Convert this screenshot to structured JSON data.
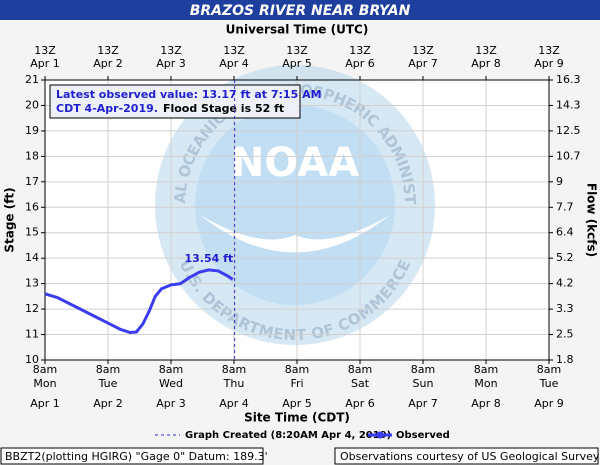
{
  "chart_data": {
    "type": "line",
    "title": "BRAZOS RIVER NEAR BRYAN",
    "top_axis_label": "Universal Time (UTC)",
    "top_tick_labels": [
      "13Z",
      "13Z",
      "13Z",
      "13Z",
      "13Z",
      "13Z",
      "13Z",
      "13Z",
      "13Z"
    ],
    "top_tick_dates": [
      "Apr 1",
      "Apr 2",
      "Apr 3",
      "Apr 4",
      "Apr 5",
      "Apr 6",
      "Apr 7",
      "Apr 8",
      "Apr 9"
    ],
    "xlabel": "Site Time (CDT)",
    "xlim": [
      0,
      8
    ],
    "xticks": [
      {
        "value": 0,
        "label": "8am"
      },
      {
        "value": 1,
        "label": "8am"
      },
      {
        "value": 2,
        "label": "8am"
      },
      {
        "value": 3,
        "label": "8am"
      },
      {
        "value": 4,
        "label": "8am"
      },
      {
        "value": 5,
        "label": "8am"
      },
      {
        "value": 6,
        "label": "8am"
      },
      {
        "value": 7,
        "label": "8am"
      },
      {
        "value": 8,
        "label": "8am"
      }
    ],
    "x_weekdays": [
      "Mon",
      "Tue",
      "Wed",
      "Thu",
      "Fri",
      "Sat",
      "Sun",
      "Mon",
      "Tue"
    ],
    "x_dates": [
      "Apr 1",
      "Apr 2",
      "Apr 3",
      "Apr 4",
      "Apr 5",
      "Apr 6",
      "Apr 7",
      "Apr 8",
      "Apr 9"
    ],
    "ylabel": "Stage (ft)",
    "ylim": [
      10,
      21
    ],
    "yticks": [
      10,
      11,
      12,
      13,
      14,
      15,
      16,
      17,
      18,
      19,
      20,
      21
    ],
    "y2label": "Flow (kcfs)",
    "y2lim": [
      1.8,
      16.3
    ],
    "y2ticks": [
      1.8,
      2.5,
      3.3,
      4.2,
      5.2,
      6.4,
      7.7,
      9.0,
      10.7,
      12.5,
      14.3,
      16.3
    ],
    "grid": true,
    "series": [
      {
        "name": "Observed",
        "color": "#3b3bef",
        "x": [
          0,
          0.2,
          0.4,
          0.6,
          0.8,
          1.0,
          1.2,
          1.35,
          1.45,
          1.55,
          1.65,
          1.75,
          1.85,
          2.0,
          2.15,
          2.3,
          2.45,
          2.6,
          2.75,
          2.9,
          2.98
        ],
        "values": [
          12.6,
          12.45,
          12.2,
          11.95,
          11.7,
          11.45,
          11.2,
          11.08,
          11.1,
          11.4,
          11.9,
          12.5,
          12.8,
          12.95,
          13.0,
          13.25,
          13.45,
          13.54,
          13.5,
          13.3,
          13.17
        ]
      }
    ],
    "created": {
      "name": "Graph Created (8:20AM Apr 4, 2019)",
      "x": 3.01
    },
    "peak": {
      "x": 2.6,
      "value": 13.54,
      "label": "13.54 ft"
    },
    "info": {
      "line1": "Latest observed value: 13.17 ft at 7:15 AM",
      "line2a": "CDT 4-Apr-2019.",
      "line2b": "Flood Stage is 52 ft"
    },
    "watermark": {
      "center": "NOAA",
      "top": "NATIONAL OCEANIC AND ATMOSPHERIC ADMINISTRATION",
      "bottom": "U.S. DEPARTMENT OF COMMERCE"
    },
    "footer_left": "BBZT2(plotting HGIRG) \"Gage 0\" Datum: 189.3'",
    "footer_right": "Observations courtesy of US Geological Survey"
  }
}
